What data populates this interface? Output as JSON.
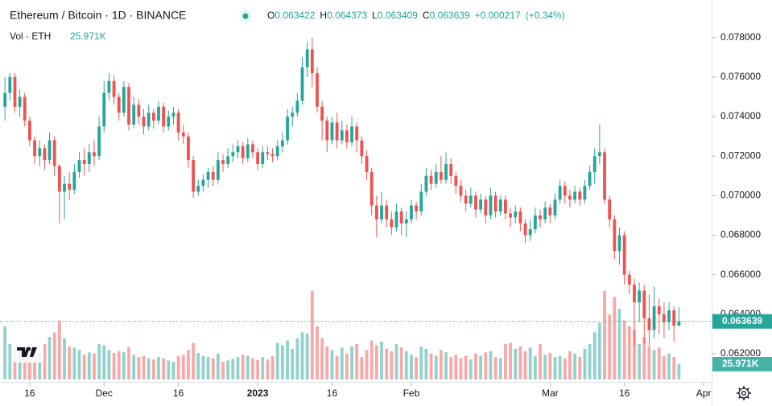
{
  "chart_data": {
    "type": "candlestick",
    "title": "Ethereum / Bitcoin · 1D · BINANCE",
    "ohlc_letters": [
      "O",
      "H",
      "L",
      "C"
    ],
    "change": "+0.000217",
    "change_percent": "(+0.34%)",
    "volume_title": "Vol · ETH",
    "last_volume_label": "25.971K",
    "up_color": "#26a69a",
    "down_color": "#ef5350",
    "ylim": [
      0.0607,
      0.0799
    ],
    "xlim": [
      -1,
      142.6
    ],
    "yticks": [
      {
        "value": 0.062,
        "label": "0.062000"
      },
      {
        "value": 0.064,
        "label": "0.064000"
      },
      {
        "value": 0.066,
        "label": "0.066000"
      },
      {
        "value": 0.068,
        "label": "0.068000"
      },
      {
        "value": 0.07,
        "label": "0.070000"
      },
      {
        "value": 0.072,
        "label": "0.072000"
      },
      {
        "value": 0.074,
        "label": "0.074000"
      },
      {
        "value": 0.076,
        "label": "0.076000"
      },
      {
        "value": 0.078,
        "label": "0.078000"
      }
    ],
    "xticks": [
      {
        "value": 5,
        "label": "16"
      },
      {
        "value": 20,
        "label": "Dec"
      },
      {
        "value": 35,
        "label": "16"
      },
      {
        "value": 51,
        "label": "2023",
        "bold": true
      },
      {
        "value": 66,
        "label": "16"
      },
      {
        "value": 82,
        "label": "Feb"
      },
      {
        "value": 110,
        "label": "Mar"
      },
      {
        "value": 125,
        "label": "16"
      },
      {
        "value": 141,
        "label": "Apr"
      }
    ],
    "grid": false,
    "candles": [
      [
        0.0745,
        0.076,
        0.0738,
        0.0752,
        90000
      ],
      [
        0.0752,
        0.0762,
        0.0748,
        0.076,
        60000
      ],
      [
        0.076,
        0.0762,
        0.0742,
        0.0745,
        55000
      ],
      [
        0.0745,
        0.0754,
        0.074,
        0.075,
        50000
      ],
      [
        0.075,
        0.0752,
        0.0735,
        0.0738,
        45000
      ],
      [
        0.0738,
        0.074,
        0.0725,
        0.0728,
        52000
      ],
      [
        0.0728,
        0.073,
        0.0716,
        0.072,
        58000
      ],
      [
        0.072,
        0.0728,
        0.0715,
        0.0724,
        48000
      ],
      [
        0.0724,
        0.0726,
        0.0713,
        0.0718,
        60000
      ],
      [
        0.0718,
        0.0732,
        0.0716,
        0.0728,
        72000
      ],
      [
        0.0728,
        0.073,
        0.071,
        0.0715,
        80000
      ],
      [
        0.0715,
        0.0716,
        0.0686,
        0.0702,
        100000
      ],
      [
        0.0702,
        0.071,
        0.0688,
        0.0706,
        70000
      ],
      [
        0.0706,
        0.0712,
        0.0698,
        0.0703,
        56000
      ],
      [
        0.0703,
        0.0716,
        0.0701,
        0.0712,
        54000
      ],
      [
        0.0712,
        0.0722,
        0.0709,
        0.0718,
        50000
      ],
      [
        0.0718,
        0.0724,
        0.071,
        0.0716,
        42000
      ],
      [
        0.0716,
        0.0726,
        0.0712,
        0.0722,
        46000
      ],
      [
        0.0722,
        0.0728,
        0.0715,
        0.072,
        44000
      ],
      [
        0.072,
        0.074,
        0.0718,
        0.0735,
        60000
      ],
      [
        0.0735,
        0.0758,
        0.0732,
        0.0752,
        58000
      ],
      [
        0.0752,
        0.0762,
        0.0748,
        0.0758,
        50000
      ],
      [
        0.0758,
        0.0761,
        0.0746,
        0.075,
        45000
      ],
      [
        0.075,
        0.0752,
        0.0738,
        0.0742,
        48000
      ],
      [
        0.0742,
        0.0758,
        0.074,
        0.0755,
        46000
      ],
      [
        0.0755,
        0.0757,
        0.0733,
        0.0736,
        55000
      ],
      [
        0.0736,
        0.075,
        0.0734,
        0.0746,
        42000
      ],
      [
        0.0746,
        0.0749,
        0.0736,
        0.074,
        38000
      ],
      [
        0.074,
        0.0744,
        0.0731,
        0.0735,
        40000
      ],
      [
        0.0735,
        0.0746,
        0.0733,
        0.0742,
        36000
      ],
      [
        0.0742,
        0.0744,
        0.0734,
        0.0738,
        34000
      ],
      [
        0.0738,
        0.0748,
        0.0736,
        0.0745,
        38000
      ],
      [
        0.0745,
        0.0747,
        0.0732,
        0.0735,
        36000
      ],
      [
        0.0735,
        0.0743,
        0.0733,
        0.074,
        32000
      ],
      [
        0.074,
        0.0745,
        0.0736,
        0.0742,
        30000
      ],
      [
        0.0742,
        0.0744,
        0.0728,
        0.0732,
        40000
      ],
      [
        0.0732,
        0.0736,
        0.0726,
        0.073,
        42000
      ],
      [
        0.073,
        0.0732,
        0.0714,
        0.0718,
        50000
      ],
      [
        0.0718,
        0.072,
        0.0699,
        0.0702,
        62000
      ],
      [
        0.0702,
        0.0708,
        0.07,
        0.0705,
        45000
      ],
      [
        0.0705,
        0.0711,
        0.0702,
        0.0708,
        40000
      ],
      [
        0.0708,
        0.0714,
        0.0704,
        0.0712,
        38000
      ],
      [
        0.0712,
        0.0715,
        0.0705,
        0.0708,
        36000
      ],
      [
        0.0708,
        0.0722,
        0.0706,
        0.0718,
        44000
      ],
      [
        0.0718,
        0.0721,
        0.0712,
        0.0716,
        30000
      ],
      [
        0.0716,
        0.0724,
        0.0714,
        0.072,
        32000
      ],
      [
        0.072,
        0.0726,
        0.0717,
        0.0722,
        35000
      ],
      [
        0.0722,
        0.0728,
        0.0719,
        0.0725,
        38000
      ],
      [
        0.0725,
        0.0727,
        0.0716,
        0.0719,
        42000
      ],
      [
        0.0719,
        0.0729,
        0.0717,
        0.0726,
        40000
      ],
      [
        0.0726,
        0.0728,
        0.0719,
        0.0722,
        36000
      ],
      [
        0.0722,
        0.0724,
        0.0713,
        0.0716,
        33000
      ],
      [
        0.0716,
        0.0725,
        0.0714,
        0.0722,
        38000
      ],
      [
        0.0722,
        0.0725,
        0.0718,
        0.0721,
        34000
      ],
      [
        0.0721,
        0.0724,
        0.0717,
        0.072,
        40000
      ],
      [
        0.072,
        0.0728,
        0.0718,
        0.0725,
        62000
      ],
      [
        0.0725,
        0.0732,
        0.0722,
        0.0728,
        58000
      ],
      [
        0.0728,
        0.0744,
        0.0726,
        0.074,
        66000
      ],
      [
        0.074,
        0.0745,
        0.0735,
        0.0742,
        52000
      ],
      [
        0.0742,
        0.0752,
        0.074,
        0.0748,
        70000
      ],
      [
        0.0748,
        0.077,
        0.0746,
        0.0765,
        80000
      ],
      [
        0.0765,
        0.0778,
        0.076,
        0.0774,
        78000
      ],
      [
        0.0774,
        0.078,
        0.0755,
        0.0762,
        150000
      ],
      [
        0.0762,
        0.0765,
        0.0742,
        0.0745,
        90000
      ],
      [
        0.0745,
        0.0748,
        0.0728,
        0.0738,
        70000
      ],
      [
        0.0738,
        0.074,
        0.0722,
        0.0728,
        56000
      ],
      [
        0.0728,
        0.074,
        0.0726,
        0.0737,
        50000
      ],
      [
        0.0737,
        0.0742,
        0.0724,
        0.0728,
        40000
      ],
      [
        0.0728,
        0.0738,
        0.0726,
        0.0733,
        54000
      ],
      [
        0.0733,
        0.0736,
        0.0724,
        0.0727,
        44000
      ],
      [
        0.0727,
        0.074,
        0.0725,
        0.0735,
        56000
      ],
      [
        0.0735,
        0.0737,
        0.0722,
        0.0728,
        60000
      ],
      [
        0.0728,
        0.073,
        0.0716,
        0.072,
        38000
      ],
      [
        0.072,
        0.0723,
        0.0708,
        0.0712,
        50000
      ],
      [
        0.0712,
        0.0714,
        0.069,
        0.0695,
        66000
      ],
      [
        0.0695,
        0.07,
        0.0679,
        0.0688,
        58000
      ],
      [
        0.0688,
        0.0702,
        0.0686,
        0.0695,
        64000
      ],
      [
        0.0695,
        0.0698,
        0.0684,
        0.0688,
        52000
      ],
      [
        0.0688,
        0.0692,
        0.068,
        0.0684,
        48000
      ],
      [
        0.0684,
        0.0696,
        0.0682,
        0.0692,
        60000
      ],
      [
        0.0692,
        0.0694,
        0.068,
        0.0686,
        55000
      ],
      [
        0.0686,
        0.0692,
        0.0679,
        0.0688,
        48000
      ],
      [
        0.0688,
        0.0698,
        0.0686,
        0.0695,
        42000
      ],
      [
        0.0695,
        0.0697,
        0.0688,
        0.0692,
        38000
      ],
      [
        0.0692,
        0.0706,
        0.069,
        0.0702,
        56000
      ],
      [
        0.0702,
        0.0714,
        0.07,
        0.071,
        52000
      ],
      [
        0.071,
        0.0713,
        0.0703,
        0.0706,
        44000
      ],
      [
        0.0706,
        0.0716,
        0.0704,
        0.0712,
        40000
      ],
      [
        0.0712,
        0.072,
        0.0706,
        0.0708,
        50000
      ],
      [
        0.0708,
        0.0722,
        0.0706,
        0.0716,
        46000
      ],
      [
        0.0716,
        0.0719,
        0.0706,
        0.071,
        38000
      ],
      [
        0.071,
        0.0712,
        0.0701,
        0.0705,
        42000
      ],
      [
        0.0705,
        0.0708,
        0.0697,
        0.07,
        36000
      ],
      [
        0.07,
        0.0703,
        0.0692,
        0.0696,
        40000
      ],
      [
        0.0696,
        0.0704,
        0.0694,
        0.07,
        34000
      ],
      [
        0.07,
        0.0702,
        0.0689,
        0.0693,
        44000
      ],
      [
        0.0693,
        0.0701,
        0.0691,
        0.0698,
        40000
      ],
      [
        0.0698,
        0.07,
        0.0686,
        0.069,
        46000
      ],
      [
        0.069,
        0.0704,
        0.0688,
        0.07,
        48000
      ],
      [
        0.07,
        0.0702,
        0.0689,
        0.0692,
        38000
      ],
      [
        0.0692,
        0.07,
        0.069,
        0.0698,
        36000
      ],
      [
        0.0698,
        0.07,
        0.0688,
        0.0691,
        60000
      ],
      [
        0.0691,
        0.0694,
        0.0684,
        0.0689,
        62000
      ],
      [
        0.0689,
        0.0695,
        0.0686,
        0.0692,
        52000
      ],
      [
        0.0692,
        0.0694,
        0.0682,
        0.0686,
        56000
      ],
      [
        0.0686,
        0.0688,
        0.0676,
        0.068,
        48000
      ],
      [
        0.068,
        0.0688,
        0.0677,
        0.0683,
        54000
      ],
      [
        0.0683,
        0.0694,
        0.0681,
        0.069,
        40000
      ],
      [
        0.069,
        0.0693,
        0.0684,
        0.0688,
        60000
      ],
      [
        0.0688,
        0.0697,
        0.0686,
        0.0694,
        42000
      ],
      [
        0.0694,
        0.0696,
        0.0686,
        0.069,
        45000
      ],
      [
        0.069,
        0.0701,
        0.0688,
        0.0698,
        38000
      ],
      [
        0.0698,
        0.0708,
        0.0696,
        0.0705,
        40000
      ],
      [
        0.0705,
        0.0707,
        0.0696,
        0.07,
        36000
      ],
      [
        0.07,
        0.0703,
        0.0694,
        0.0698,
        48000
      ],
      [
        0.0698,
        0.0705,
        0.0696,
        0.0702,
        44000
      ],
      [
        0.0702,
        0.0704,
        0.0695,
        0.0698,
        38000
      ],
      [
        0.0698,
        0.0708,
        0.0696,
        0.0705,
        52000
      ],
      [
        0.0705,
        0.0715,
        0.0703,
        0.0712,
        60000
      ],
      [
        0.0712,
        0.0724,
        0.0706,
        0.072,
        80000
      ],
      [
        0.072,
        0.0736,
        0.0716,
        0.0722,
        96000
      ],
      [
        0.0722,
        0.0724,
        0.0696,
        0.0698,
        150000
      ],
      [
        0.0698,
        0.07,
        0.0684,
        0.0688,
        110000
      ],
      [
        0.0688,
        0.069,
        0.0668,
        0.0672,
        140000
      ],
      [
        0.0672,
        0.0684,
        0.0665,
        0.068,
        120000
      ],
      [
        0.068,
        0.0682,
        0.0655,
        0.066,
        100000
      ],
      [
        0.066,
        0.0662,
        0.065,
        0.0655,
        90000
      ],
      [
        0.0655,
        0.0658,
        0.0624,
        0.0646,
        84000
      ],
      [
        0.0646,
        0.0656,
        0.0636,
        0.0652,
        60000
      ],
      [
        0.0652,
        0.0655,
        0.0625,
        0.0638,
        72000
      ],
      [
        0.0638,
        0.065,
        0.0624,
        0.0632,
        56000
      ],
      [
        0.0632,
        0.0654,
        0.0628,
        0.0644,
        50000
      ],
      [
        0.0644,
        0.0648,
        0.063,
        0.064,
        54000
      ],
      [
        0.064,
        0.0646,
        0.0628,
        0.0636,
        40000
      ],
      [
        0.0636,
        0.0646,
        0.0632,
        0.0642,
        44000
      ],
      [
        0.0642,
        0.0644,
        0.0626,
        0.063422,
        38000
      ],
      [
        0.063422,
        0.064373,
        0.063409,
        0.063639,
        25971
      ]
    ]
  }
}
